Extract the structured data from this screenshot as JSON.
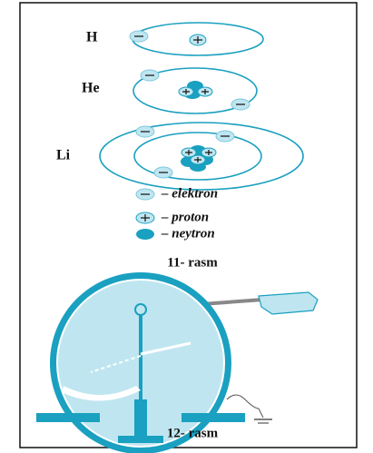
{
  "figure_11": {
    "atoms": [
      {
        "label": "H"
      },
      {
        "label": "He"
      },
      {
        "label": "Li"
      }
    ],
    "legend": [
      {
        "label": "– elektron"
      },
      {
        "label": "– proton"
      },
      {
        "label": "– neytron"
      }
    ],
    "caption": "11- rasm"
  },
  "figure_12": {
    "charges": "– – –",
    "caption": "12- rasm"
  }
}
